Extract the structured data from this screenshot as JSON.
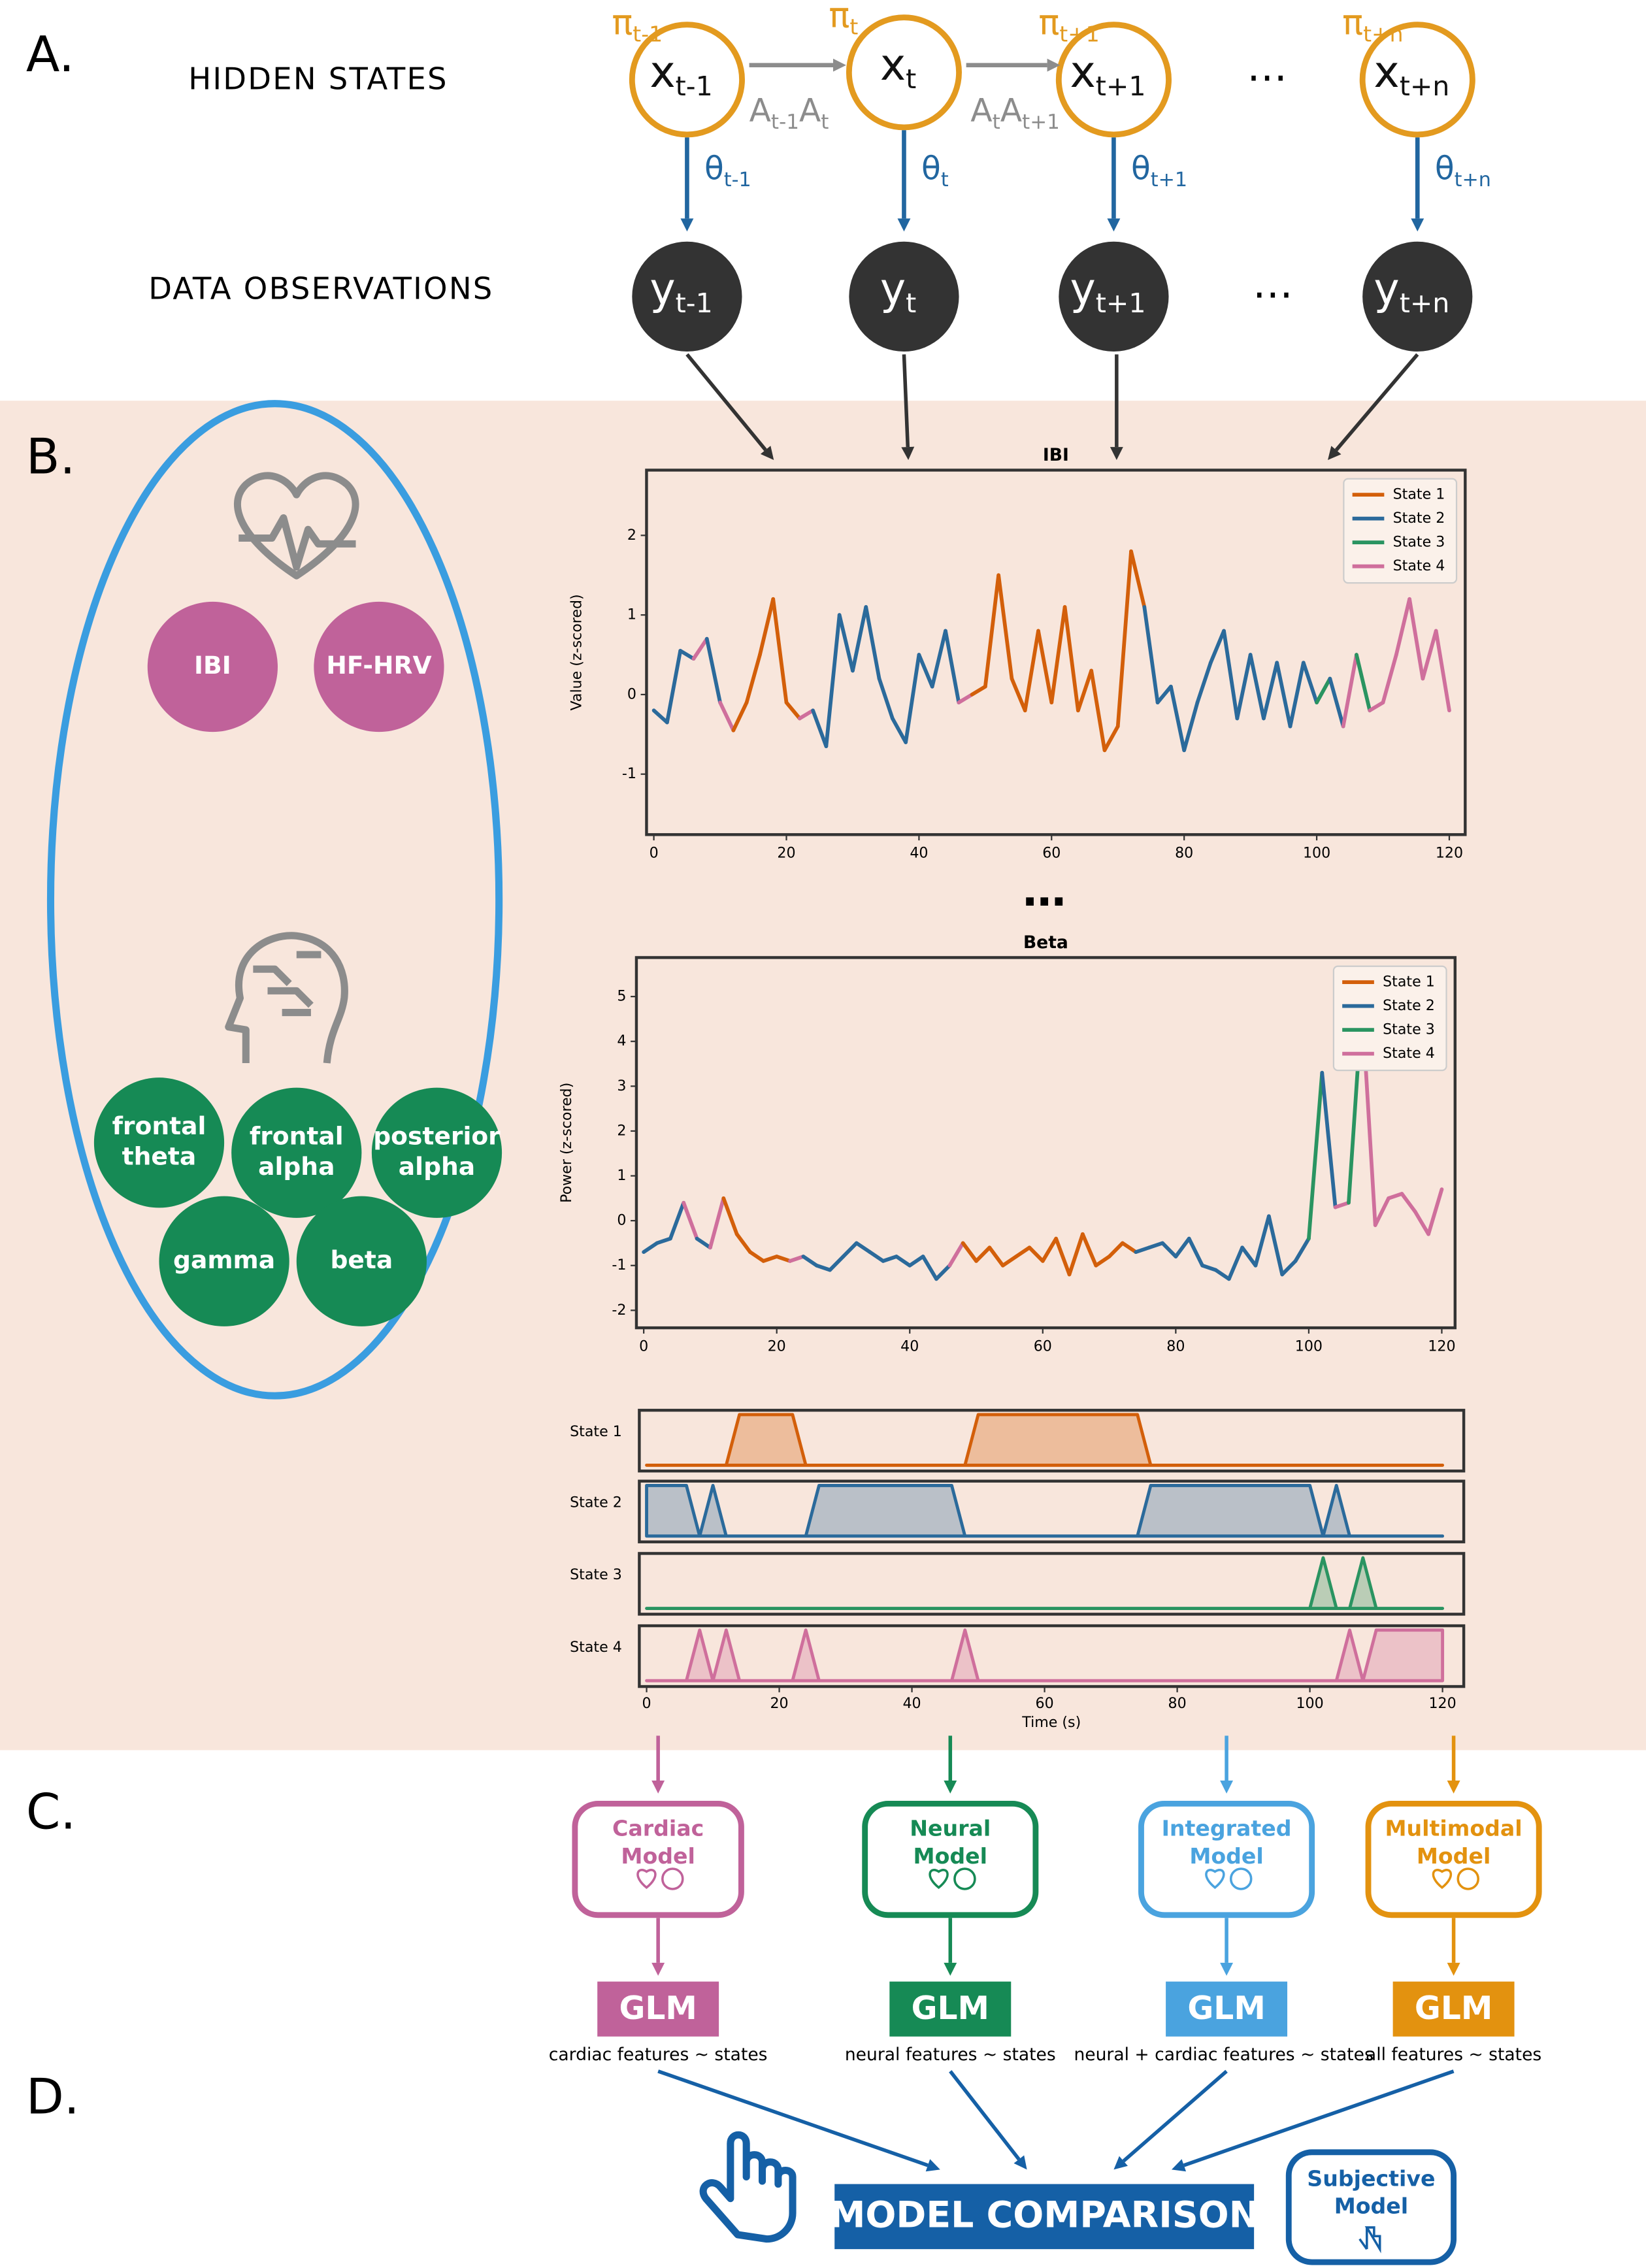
{
  "panels": {
    "a": "A.",
    "b": "B.",
    "c": "C.",
    "d": "D."
  },
  "hmm": {
    "hidden_label": "HIDDEN STATES",
    "observed_label": "DATA OBSERVATIONS",
    "ellipsis": "…",
    "hidden": [
      {
        "var": "x",
        "sub": "t-1",
        "prior": "π",
        "prior_sub": "t-1"
      },
      {
        "var": "x",
        "sub": "t",
        "prior": "π",
        "prior_sub": "t"
      },
      {
        "var": "x",
        "sub": "t+1",
        "prior": "π",
        "prior_sub": "t+1"
      },
      {
        "var": "x",
        "sub": "t+n",
        "prior": "π",
        "prior_sub": "t+n"
      }
    ],
    "observed": [
      {
        "var": "y",
        "sub": "t-1",
        "emission": "θ",
        "emission_sub": "t-1"
      },
      {
        "var": "y",
        "sub": "t",
        "emission": "θ",
        "emission_sub": "t"
      },
      {
        "var": "y",
        "sub": "t+1",
        "emission": "θ",
        "emission_sub": "t+1"
      },
      {
        "var": "y",
        "sub": "t+n",
        "emission": "θ",
        "emission_sub": "t+n"
      }
    ],
    "transitions": [
      {
        "a": "A",
        "a_sub": "t-1",
        "b": "A",
        "b_sub": "t"
      },
      {
        "a": "A",
        "a_sub": "t",
        "b": "A",
        "b_sub": "t+1"
      }
    ]
  },
  "features": {
    "cardiac": [
      "IBI",
      "HF-HRV"
    ],
    "cardiac_color": "#c0629a",
    "neural": [
      [
        "frontal",
        "theta"
      ],
      [
        "frontal",
        "alpha"
      ],
      [
        "posterior",
        "alpha"
      ],
      [
        "gamma"
      ],
      [
        "beta"
      ]
    ],
    "neural_color": "#168a55"
  },
  "continuation": "…",
  "chart_data": [
    {
      "type": "line",
      "title": "IBI",
      "ylabel": "Value (z-scored)",
      "x": [
        0,
        2,
        4,
        6,
        8,
        10,
        12,
        14,
        16,
        18,
        20,
        22,
        24,
        26,
        28,
        30,
        32,
        34,
        36,
        38,
        40,
        42,
        44,
        46,
        48,
        50,
        52,
        54,
        56,
        58,
        60,
        62,
        64,
        66,
        68,
        70,
        72,
        74,
        76,
        78,
        80,
        82,
        84,
        86,
        88,
        90,
        92,
        94,
        96,
        98,
        100,
        102,
        104,
        106,
        108,
        110,
        112,
        114,
        116,
        118,
        120
      ],
      "values": [
        -0.2,
        -0.35,
        0.55,
        0.45,
        0.7,
        -0.1,
        -0.45,
        -0.1,
        0.5,
        1.2,
        -0.1,
        -0.3,
        -0.2,
        -0.65,
        1.0,
        0.3,
        1.1,
        0.2,
        -0.3,
        -0.6,
        0.5,
        0.1,
        0.8,
        -0.1,
        0.0,
        0.1,
        1.5,
        0.2,
        -0.2,
        0.8,
        -0.1,
        1.1,
        -0.2,
        0.3,
        -0.7,
        -0.4,
        1.8,
        1.1,
        -0.1,
        0.1,
        -0.7,
        -0.1,
        0.4,
        0.8,
        -0.3,
        0.5,
        -0.3,
        0.4,
        -0.4,
        0.4,
        -0.1,
        0.2,
        -0.4,
        0.5,
        -0.2,
        -0.1,
        0.5,
        1.2,
        0.2,
        0.8,
        -0.2
      ],
      "state": [
        2,
        2,
        2,
        2,
        4,
        2,
        4,
        1,
        1,
        1,
        1,
        1,
        4,
        2,
        2,
        2,
        2,
        2,
        2,
        2,
        2,
        2,
        2,
        2,
        4,
        1,
        1,
        1,
        1,
        1,
        1,
        1,
        1,
        1,
        1,
        1,
        1,
        1,
        2,
        2,
        2,
        2,
        2,
        2,
        2,
        2,
        2,
        2,
        2,
        2,
        2,
        3,
        2,
        4,
        3,
        4,
        4,
        4,
        4,
        4,
        4
      ],
      "states": [
        {
          "name": "State 1",
          "color": "#d35f0a"
        },
        {
          "name": "State 2",
          "color": "#2b6a9b"
        },
        {
          "name": "State 3",
          "color": "#2a9461"
        },
        {
          "name": "State 4",
          "color": "#cf6f9c"
        }
      ],
      "xlim": [
        -1.1,
        122.4
      ],
      "ylim": [
        -1.76,
        2.82
      ],
      "xticks": [
        0,
        20,
        40,
        60,
        80,
        100,
        120
      ],
      "yticks": [
        -1,
        0,
        1,
        2
      ],
      "legend": "upper right"
    },
    {
      "type": "line",
      "title": "Beta",
      "ylabel": "Power (z-scored)",
      "x": [
        0,
        2,
        4,
        6,
        8,
        10,
        12,
        14,
        16,
        18,
        20,
        22,
        24,
        26,
        28,
        30,
        32,
        34,
        36,
        38,
        40,
        42,
        44,
        46,
        48,
        50,
        52,
        54,
        56,
        58,
        60,
        62,
        64,
        66,
        68,
        70,
        72,
        74,
        76,
        78,
        80,
        82,
        84,
        86,
        88,
        90,
        92,
        94,
        96,
        98,
        100,
        102,
        104,
        106,
        108,
        110,
        112,
        114,
        116,
        118,
        120
      ],
      "values": [
        -0.7,
        -0.5,
        -0.4,
        0.4,
        -0.4,
        -0.6,
        0.5,
        -0.3,
        -0.7,
        -0.9,
        -0.8,
        -0.9,
        -0.8,
        -1.0,
        -1.1,
        -0.8,
        -0.5,
        -0.7,
        -0.9,
        -0.8,
        -1.0,
        -0.8,
        -1.3,
        -1.0,
        -0.5,
        -0.9,
        -0.6,
        -1.0,
        -0.8,
        -0.6,
        -0.9,
        -0.4,
        -1.2,
        -0.3,
        -1.0,
        -0.8,
        -0.5,
        -0.7,
        -0.6,
        -0.5,
        -0.8,
        -0.4,
        -1.0,
        -1.1,
        -1.3,
        -0.6,
        -1.0,
        0.1,
        -1.2,
        -0.9,
        -0.4,
        3.3,
        0.3,
        0.4,
        4.8,
        -0.1,
        0.5,
        0.6,
        0.2,
        -0.3,
        0.7
      ],
      "state": [
        2,
        2,
        2,
        2,
        4,
        2,
        4,
        1,
        1,
        1,
        1,
        1,
        4,
        2,
        2,
        2,
        2,
        2,
        2,
        2,
        2,
        2,
        2,
        2,
        4,
        1,
        1,
        1,
        1,
        1,
        1,
        1,
        1,
        1,
        1,
        1,
        1,
        1,
        2,
        2,
        2,
        2,
        2,
        2,
        2,
        2,
        2,
        2,
        2,
        2,
        2,
        3,
        2,
        4,
        3,
        4,
        4,
        4,
        4,
        4,
        4
      ],
      "states": [
        {
          "name": "State 1",
          "color": "#d35f0a"
        },
        {
          "name": "State 2",
          "color": "#2b6a9b"
        },
        {
          "name": "State 3",
          "color": "#2a9461"
        },
        {
          "name": "State 4",
          "color": "#cf6f9c"
        }
      ],
      "xlim": [
        -1.1,
        122.0
      ],
      "ylim": [
        -2.39,
        5.87
      ],
      "xticks": [
        0,
        20,
        40,
        60,
        80,
        100,
        120
      ],
      "yticks": [
        -2,
        -1,
        0,
        1,
        2,
        3,
        4,
        5
      ],
      "legend": "upper right"
    },
    {
      "type": "state-timeline",
      "xlabel": "Time (s)",
      "x": [
        0,
        2,
        4,
        6,
        8,
        10,
        12,
        14,
        16,
        18,
        20,
        22,
        24,
        26,
        28,
        30,
        32,
        34,
        36,
        38,
        40,
        42,
        44,
        46,
        48,
        50,
        52,
        54,
        56,
        58,
        60,
        62,
        64,
        66,
        68,
        70,
        72,
        74,
        76,
        78,
        80,
        82,
        84,
        86,
        88,
        90,
        92,
        94,
        96,
        98,
        100,
        102,
        104,
        106,
        108,
        110,
        112,
        114,
        116,
        118,
        120
      ],
      "state": [
        2,
        2,
        2,
        2,
        4,
        2,
        4,
        1,
        1,
        1,
        1,
        1,
        4,
        2,
        2,
        2,
        2,
        2,
        2,
        2,
        2,
        2,
        2,
        2,
        4,
        1,
        1,
        1,
        1,
        1,
        1,
        1,
        1,
        1,
        1,
        1,
        1,
        1,
        2,
        2,
        2,
        2,
        2,
        2,
        2,
        2,
        2,
        2,
        2,
        2,
        2,
        3,
        2,
        4,
        3,
        4,
        4,
        4,
        4,
        4,
        4
      ],
      "states": [
        {
          "name": "State 1",
          "color": "#d35f0a"
        },
        {
          "name": "State 2",
          "color": "#2b6a9b"
        },
        {
          "name": "State 3",
          "color": "#2a9461"
        },
        {
          "name": "State 4",
          "color": "#cf6f9c"
        }
      ],
      "xlim": [
        -1.1,
        123.2
      ],
      "xticks": [
        0,
        20,
        40,
        60,
        80,
        100,
        120
      ]
    }
  ],
  "models": [
    {
      "name": [
        "Cardiac",
        "Model"
      ],
      "color": "#c0629a",
      "glm": "GLM",
      "caption": "cardiac features ~ states"
    },
    {
      "name": [
        "Neural",
        "Model"
      ],
      "color": "#168a55",
      "glm": "GLM",
      "caption": "neural features ~ states"
    },
    {
      "name": [
        "Integrated",
        "Model"
      ],
      "color": "#4aa3df",
      "glm": "GLM",
      "caption": "neural + cardiac features ~ states"
    },
    {
      "name": [
        "Multimodal",
        "Model"
      ],
      "color": "#e3920f",
      "glm": "GLM",
      "caption": "all features ~ states"
    }
  ],
  "comparison": {
    "label": "MODEL COMPARISON",
    "subjective": [
      "Subjective",
      "Model"
    ],
    "color": "#1560a6"
  }
}
